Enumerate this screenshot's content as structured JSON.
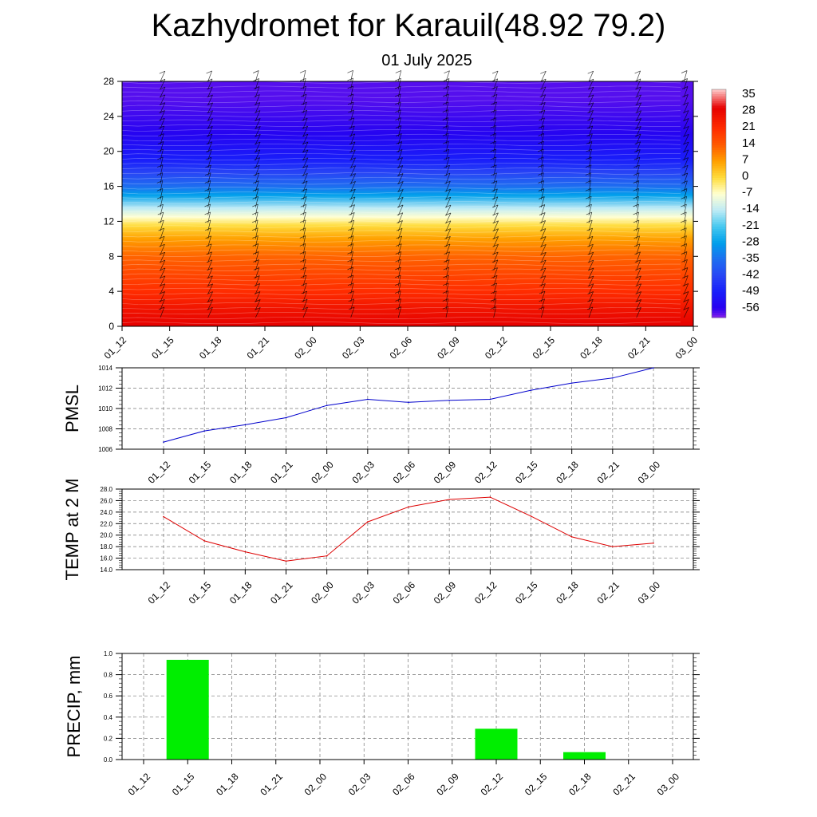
{
  "header": {
    "title": "Kazhydromet for Karauil(48.92 79.2)",
    "subtitle": "01 July 2025"
  },
  "time_labels": [
    "01_12",
    "01_15",
    "01_18",
    "01_21",
    "02_00",
    "02_03",
    "02_06",
    "02_09",
    "02_12",
    "02_15",
    "02_18",
    "02_21",
    "03_00"
  ],
  "chart_data": [
    {
      "type": "heatmap",
      "title": "",
      "xlabel": "",
      "ylabel": "",
      "categories": [
        "01_12",
        "01_15",
        "01_18",
        "01_21",
        "02_00",
        "02_03",
        "02_06",
        "02_09",
        "02_12",
        "02_15",
        "02_18",
        "02_21",
        "03_00"
      ],
      "y_ticks": [
        0,
        4,
        8,
        12,
        16,
        20,
        24,
        28
      ],
      "ylim": [
        0,
        28
      ],
      "colorbar": {
        "labels": [
          "35",
          "28",
          "21",
          "14",
          "7",
          "0",
          "-7",
          "-14",
          "-21",
          "-28",
          "-35",
          "-42",
          "-49",
          "-56"
        ],
        "range": [
          -60,
          38
        ]
      },
      "temperature_profile": [
        {
          "level": 0,
          "value": 30
        },
        {
          "level": 2,
          "value": 26
        },
        {
          "level": 4,
          "value": 21
        },
        {
          "level": 6,
          "value": 17
        },
        {
          "level": 8,
          "value": 13
        },
        {
          "level": 10,
          "value": 7
        },
        {
          "level": 11.5,
          "value": 0
        },
        {
          "level": 12.5,
          "value": -7
        },
        {
          "level": 13.5,
          "value": -14
        },
        {
          "level": 15,
          "value": -28
        },
        {
          "level": 16,
          "value": -35
        },
        {
          "level": 17.5,
          "value": -42
        },
        {
          "level": 19,
          "value": -49
        },
        {
          "level": 22,
          "value": -55
        },
        {
          "level": 26,
          "value": -58
        },
        {
          "level": 28,
          "value": -58
        }
      ],
      "wind_barbs": true
    },
    {
      "type": "line",
      "ylabel": "PMSL",
      "categories": [
        "01_12",
        "01_15",
        "01_18",
        "01_21",
        "02_00",
        "02_03",
        "02_06",
        "02_09",
        "02_12",
        "02_15",
        "02_18",
        "02_21",
        "03_00"
      ],
      "y_ticks": [
        1006,
        1008,
        1010,
        1012,
        1014
      ],
      "ylim": [
        1006,
        1014
      ],
      "series": [
        {
          "color": "#0000cc",
          "values": [
            1006.7,
            1007.8,
            1008.4,
            1009.1,
            1010.3,
            1010.9,
            1010.6,
            1010.8,
            1010.9,
            1011.8,
            1012.5,
            1013.0,
            1014.0
          ]
        }
      ],
      "grid": true
    },
    {
      "type": "line",
      "ylabel": "TEMP at 2 M",
      "categories": [
        "01_12",
        "01_15",
        "01_18",
        "01_21",
        "02_00",
        "02_03",
        "02_06",
        "02_09",
        "02_12",
        "02_15",
        "02_18",
        "02_21",
        "03_00"
      ],
      "y_ticks": [
        "14.0",
        "16.0",
        "18.0",
        "20.0",
        "22.0",
        "24.0",
        "26.0",
        "28.0"
      ],
      "ylim": [
        14,
        28
      ],
      "series": [
        {
          "color": "#dd0000",
          "values": [
            23.2,
            19.0,
            17.1,
            15.5,
            16.4,
            22.3,
            24.9,
            26.2,
            26.6,
            23.3,
            19.7,
            18.0,
            18.6
          ]
        }
      ],
      "grid": true
    },
    {
      "type": "bar",
      "ylabel": "PRECIP, mm",
      "categories": [
        "01_12",
        "01_15",
        "01_18",
        "01_21",
        "02_00",
        "02_03",
        "02_06",
        "02_09",
        "02_12",
        "02_15",
        "02_18",
        "02_21",
        "03_00"
      ],
      "y_ticks": [
        "0.0",
        "0.2",
        "0.4",
        "0.6",
        "0.8",
        "1.0"
      ],
      "ylim": [
        0,
        1.0
      ],
      "values": [
        0,
        0.94,
        0,
        0,
        0,
        0,
        0,
        0,
        0.29,
        0,
        0.07,
        0,
        0
      ],
      "bar_color": "#00ee00",
      "grid": true
    }
  ]
}
